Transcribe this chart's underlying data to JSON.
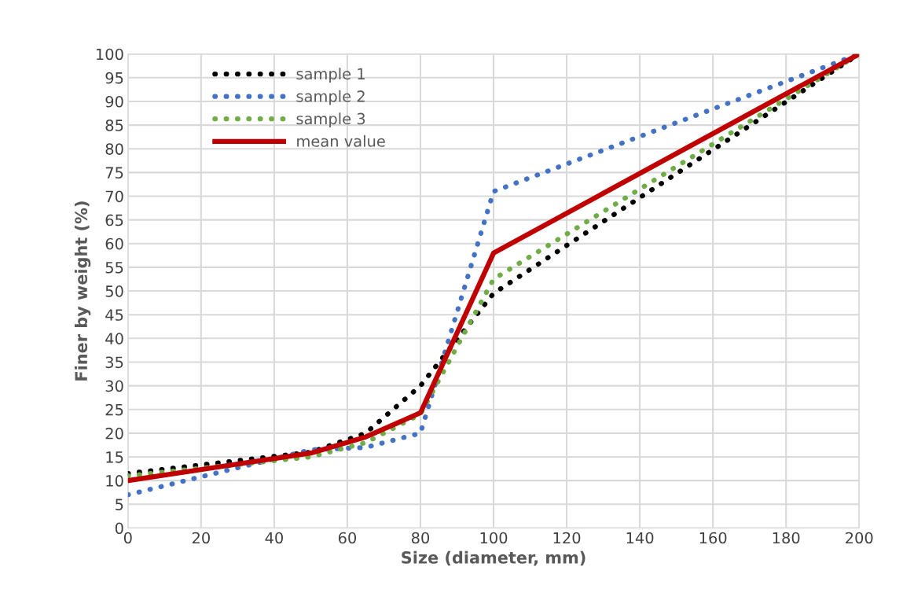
{
  "chart_data": {
    "type": "line",
    "xlabel": "Size (diameter, mm)",
    "ylabel": "Finer by weight (%)",
    "x": [
      0,
      50,
      65,
      80,
      100,
      200
    ],
    "series": [
      {
        "name": "sample 1",
        "color": "#000000",
        "line_style": "dotted",
        "values": [
          11.5,
          16,
          20,
          30,
          49.5,
          100
        ]
      },
      {
        "name": "sample 2",
        "color": "#4472c4",
        "line_style": "dotted",
        "values": [
          7,
          16.5,
          17,
          20,
          71,
          100
        ]
      },
      {
        "name": "sample 3",
        "color": "#70ad47",
        "line_style": "dotted",
        "values": [
          11,
          15,
          18,
          24,
          52.5,
          100
        ]
      },
      {
        "name": "mean value",
        "color": "#c00000",
        "line_style": "solid",
        "values": [
          10,
          15.8,
          19.2,
          24.3,
          58,
          100
        ]
      }
    ],
    "xlim": [
      0,
      200
    ],
    "xticks": [
      0,
      20,
      40,
      60,
      80,
      100,
      120,
      140,
      160,
      180,
      200
    ],
    "ylim": [
      0,
      100
    ],
    "yticks": [
      0,
      5,
      10,
      15,
      20,
      25,
      30,
      35,
      40,
      45,
      50,
      55,
      60,
      65,
      70,
      75,
      80,
      85,
      90,
      95,
      100
    ],
    "grid": true,
    "legend": "top left",
    "marker": "none"
  }
}
